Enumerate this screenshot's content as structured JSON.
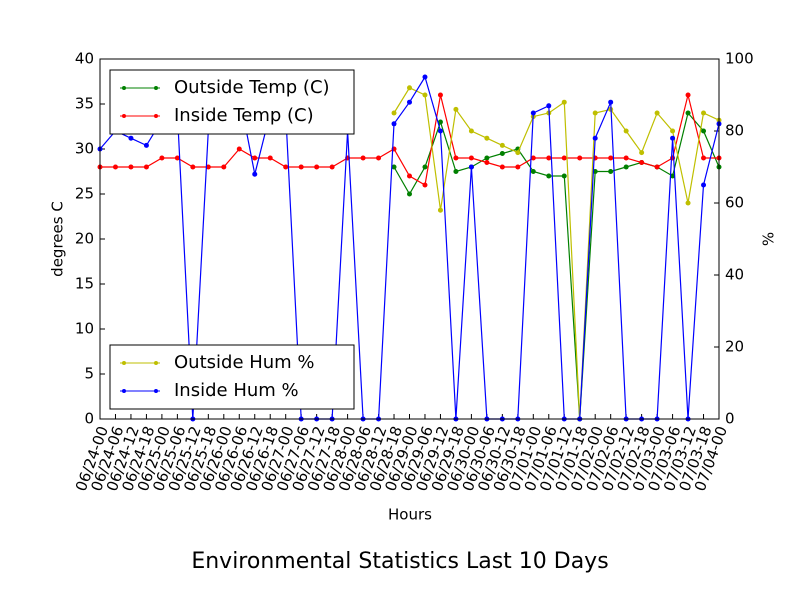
{
  "chart_data": {
    "type": "line",
    "title": "Environmental Statistics Last 10 Days",
    "xlabel": "Hours",
    "ylabel": "degrees C",
    "y2label": "%",
    "x": [
      "06/24-00",
      "06/24-06",
      "06/24-12",
      "06/24-18",
      "06/25-00",
      "06/25-06",
      "06/25-12",
      "06/25-18",
      "06/26-00",
      "06/26-06",
      "06/26-12",
      "06/26-18",
      "06/27-00",
      "06/27-06",
      "06/27-12",
      "06/27-18",
      "06/28-00",
      "06/28-06",
      "06/28-12",
      "06/28-18",
      "06/29-00",
      "06/29-06",
      "06/29-12",
      "06/29-18",
      "06/30-00",
      "06/30-06",
      "06/30-12",
      "06/30-18",
      "07/01-00",
      "07/01-06",
      "07/01-12",
      "07/01-18",
      "07/02-00",
      "07/02-06",
      "07/02-12",
      "07/02-18",
      "07/03-00",
      "07/03-06",
      "07/03-12",
      "07/03-18",
      "07/04-00"
    ],
    "series": [
      {
        "name": "Outside Temp (C)",
        "color": "#008000",
        "values": [
          null,
          null,
          null,
          null,
          null,
          null,
          null,
          null,
          null,
          null,
          null,
          null,
          null,
          null,
          null,
          null,
          null,
          null,
          null,
          28,
          25,
          28,
          33,
          27.5,
          28,
          29,
          29.5,
          30,
          27.5,
          27,
          27,
          0,
          27.5,
          27.5,
          28,
          28.5,
          28,
          27,
          34,
          32,
          28
        ]
      },
      {
        "name": "Inside Temp (C)",
        "color": "#ff0000",
        "values": [
          28,
          28,
          28,
          28,
          29,
          29,
          28,
          28,
          28,
          30,
          29,
          29,
          28,
          28,
          28,
          28,
          29,
          29,
          29,
          30,
          27,
          26,
          36,
          29,
          29,
          28.5,
          28,
          28,
          29,
          29,
          29,
          29,
          29,
          29,
          29,
          28.5,
          28,
          29,
          36,
          29,
          29
        ]
      },
      {
        "name": "Outside Hum %",
        "color": "#bfbf00",
        "axis": "y2",
        "values": [
          null,
          null,
          null,
          null,
          null,
          null,
          null,
          null,
          null,
          null,
          null,
          null,
          null,
          null,
          null,
          null,
          null,
          null,
          null,
          85,
          92,
          90,
          58,
          86,
          80,
          78,
          76,
          74,
          84,
          85,
          88,
          0,
          85,
          86,
          80,
          74,
          85,
          80,
          60,
          85,
          83
        ]
      },
      {
        "name": "Inside Hum %",
        "color": "#0000ff",
        "axis": "y2",
        "values": [
          75,
          80,
          78,
          76,
          83,
          85,
          0,
          80,
          86,
          90,
          68,
          85,
          85,
          0,
          0,
          0,
          80,
          0,
          0,
          82,
          88,
          95,
          80,
          0,
          70,
          0,
          0,
          0,
          85,
          87,
          0,
          0,
          78,
          88,
          0,
          0,
          0,
          78,
          0,
          65,
          82
        ]
      }
    ],
    "xticks": [
      "06/24-00",
      "06/24-06",
      "06/24-12",
      "06/24-18",
      "06/25-00",
      "06/25-06",
      "06/25-12",
      "06/25-18",
      "06/26-00",
      "06/26-06",
      "06/26-12",
      "06/26-18",
      "06/27-00",
      "06/27-06",
      "06/27-12",
      "06/27-18",
      "06/28-00",
      "06/28-06",
      "06/28-12",
      "06/28-18",
      "06/29-00",
      "06/29-06",
      "06/29-12",
      "06/29-18",
      "06/30-00",
      "06/30-06",
      "06/30-12",
      "06/30-18",
      "07/01-00",
      "07/01-06",
      "07/01-12",
      "07/01-18",
      "07/02-00",
      "07/02-06",
      "07/02-12",
      "07/02-18",
      "07/03-00",
      "07/03-06",
      "07/03-12",
      "07/03-18",
      "07/04-00"
    ],
    "ylim": [
      0,
      40
    ],
    "yticks": [
      0,
      5,
      10,
      15,
      20,
      25,
      30,
      35,
      40
    ],
    "y2lim": [
      0,
      100
    ],
    "y2ticks": [
      0,
      20,
      40,
      60,
      80,
      100
    ],
    "legend_y": "upper left",
    "legend_y2": "lower left"
  }
}
